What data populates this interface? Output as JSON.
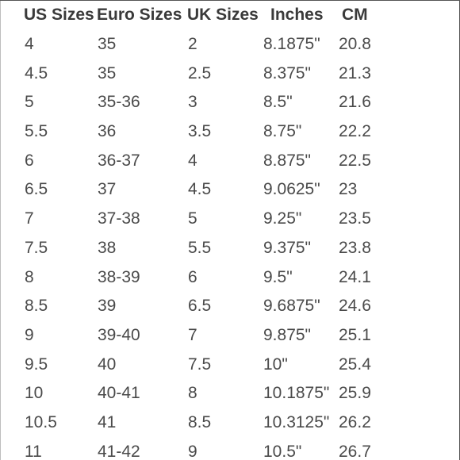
{
  "headers": [
    "US Sizes",
    "Euro Sizes",
    "UK Sizes",
    "Inches",
    "CM"
  ],
  "rows": [
    [
      "4",
      "35",
      "2",
      "8.1875\"",
      "20.8"
    ],
    [
      "4.5",
      "35",
      "2.5",
      "8.375\"",
      "21.3"
    ],
    [
      "5",
      "35-36",
      "3",
      "8.5\"",
      "21.6"
    ],
    [
      "5.5",
      "36",
      "3.5",
      "8.75\"",
      "22.2"
    ],
    [
      "6",
      "36-37",
      "4",
      "8.875\"",
      "22.5"
    ],
    [
      "6.5",
      "37",
      "4.5",
      "9.0625\"",
      "23"
    ],
    [
      "7",
      "37-38",
      "5",
      "9.25\"",
      "23.5"
    ],
    [
      "7.5",
      "38",
      "5.5",
      "9.375\"",
      "23.8"
    ],
    [
      "8",
      "38-39",
      "6",
      "9.5\"",
      "24.1"
    ],
    [
      "8.5",
      "39",
      "6.5",
      "9.6875\"",
      "24.6"
    ],
    [
      "9",
      "39-40",
      "7",
      "9.875\"",
      "25.1"
    ],
    [
      "9.5",
      "40",
      "7.5",
      "10\"",
      "25.4"
    ],
    [
      "10",
      "40-41",
      "8",
      "10.1875\"",
      "25.9"
    ],
    [
      "10.5",
      "41",
      "8.5",
      "10.3125\"",
      "26.2"
    ],
    [
      "11",
      "41-42",
      "9",
      "10.5\"",
      "26.7"
    ]
  ]
}
